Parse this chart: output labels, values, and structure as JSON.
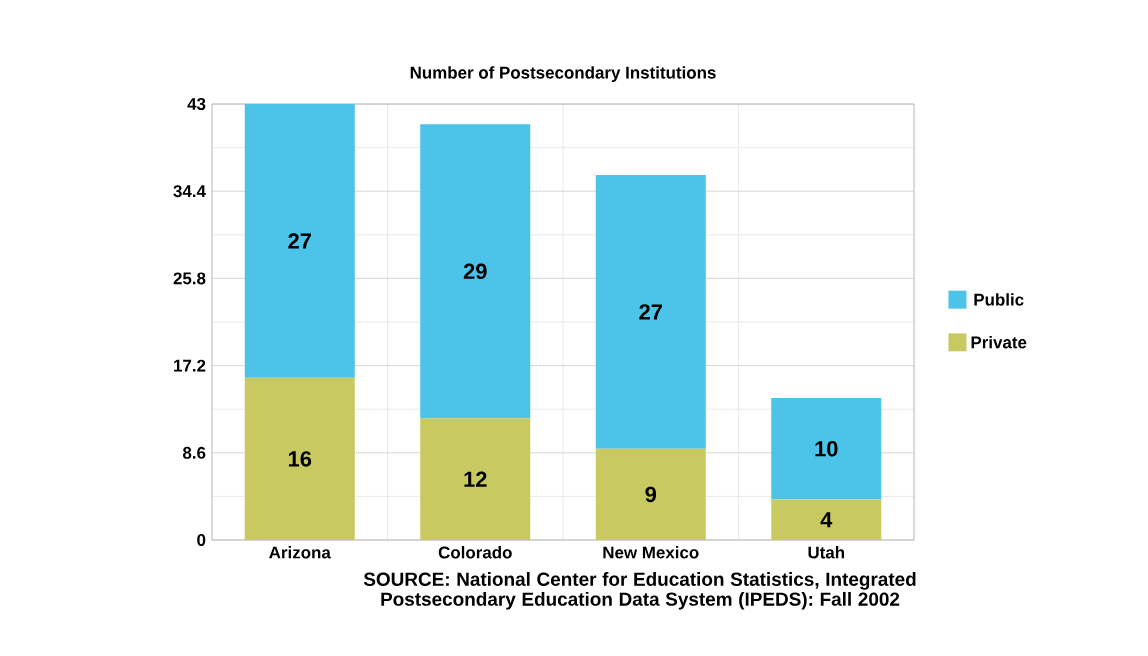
{
  "chart_data": {
    "type": "bar",
    "title": "Number of Postsecondary Institutions",
    "categories": [
      "Arizona",
      "Colorado",
      "New Mexico",
      "Utah"
    ],
    "stacked": true,
    "series": [
      {
        "name": "Private",
        "color": "#c9c962",
        "values": [
          16,
          12,
          9,
          4
        ]
      },
      {
        "name": "Public",
        "color": "#4cc3e8",
        "values": [
          27,
          29,
          27,
          10
        ]
      }
    ],
    "ylim": [
      0,
      43
    ],
    "yticks": [
      0,
      8.6,
      17.2,
      25.8,
      34.4,
      43
    ],
    "grid": true,
    "legend": "right",
    "data_labels": true,
    "annotations": [
      "SOURCE: National Center for Education Statistics, Integrated Postsecondary Education Data System (IPEDS): Fall 2002"
    ]
  }
}
